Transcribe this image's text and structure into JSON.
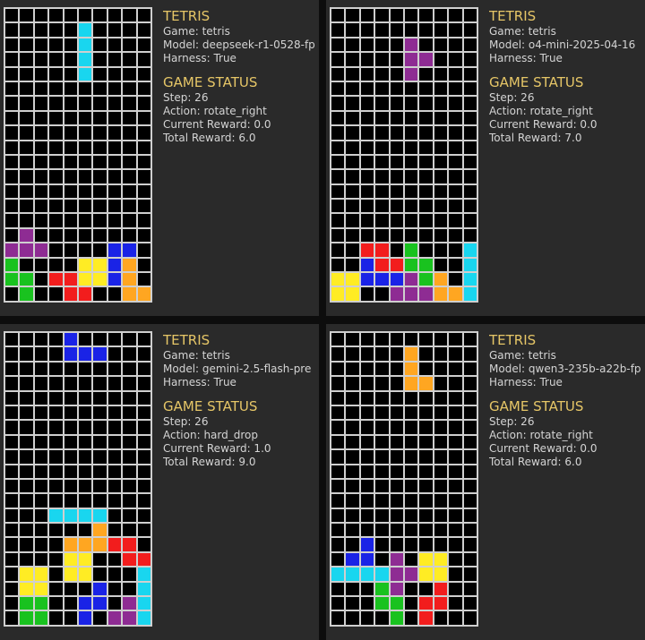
{
  "colors": {
    "cyan": "#19d6ef",
    "purple": "#8e2c93",
    "red": "#f21d1d",
    "green": "#19c21f",
    "yellow": "#ffec24",
    "blue": "#1a23e6",
    "orange": "#ffa621",
    "empty": "#000000"
  },
  "panels": [
    {
      "title": "TETRIS",
      "game_line": "Game: tetris",
      "model_line": "Model: deepseek-r1-0528-fp",
      "harness_line": "Harness: True",
      "status_title": "GAME STATUS",
      "step_line": "Step: 26",
      "action_line": "Action: rotate_right",
      "current_reward_line": "Current Reward: 0.0",
      "total_reward_line": "Total Reward: 6.0",
      "board": [
        "..........",
        ".....C....",
        ".....C....",
        ".....C....",
        ".....C....",
        "..........",
        "..........",
        "..........",
        "..........",
        "..........",
        "..........",
        "..........",
        "..........",
        "..........",
        "..........",
        ".P........",
        "PPP....BB.",
        "G....YYBO.",
        "GG.RRYYBO.",
        ".G..RR..OO"
      ]
    },
    {
      "title": "TETRIS",
      "game_line": "Game: tetris",
      "model_line": "Model: o4-mini-2025-04-16",
      "harness_line": "Harness: True",
      "status_title": "GAME STATUS",
      "step_line": "Step: 26",
      "action_line": "Action: rotate_right",
      "current_reward_line": "Current Reward: 0.0",
      "total_reward_line": "Total Reward: 7.0",
      "board": [
        "..........",
        "..........",
        ".....P....",
        ".....PP...",
        ".....P....",
        "..........",
        "..........",
        "..........",
        "..........",
        "..........",
        "..........",
        "..........",
        "..........",
        "..........",
        "..........",
        "..........",
        "..RR.G...C",
        "..BRRGG..C",
        "YYBBBPGO.C",
        "YY..PPPOOC"
      ]
    },
    {
      "title": "TETRIS",
      "game_line": "Game: tetris",
      "model_line": "Model: gemini-2.5-flash-pre",
      "harness_line": "Harness: True",
      "status_title": "GAME STATUS",
      "step_line": "Step: 26",
      "action_line": "Action: hard_drop",
      "current_reward_line": "Current Reward: 1.0",
      "total_reward_line": "Total Reward: 9.0",
      "board": [
        "....B.....",
        "....BBB...",
        "..........",
        "..........",
        "..........",
        "..........",
        "..........",
        "..........",
        "..........",
        "..........",
        "..........",
        "..........",
        "...CCCC...",
        "......O...",
        "....OOORR.",
        "....YY..RR",
        ".YY.YY...C",
        ".YY...B..C",
        ".GG..BB.PC",
        ".GG..B.PPC"
      ]
    },
    {
      "title": "TETRIS",
      "game_line": "Game: tetris",
      "model_line": "Model: qwen3-235b-a22b-fp",
      "harness_line": "Harness: True",
      "status_title": "GAME STATUS",
      "step_line": "Step: 26",
      "action_line": "Action: rotate_right",
      "current_reward_line": "Current Reward: 0.0",
      "total_reward_line": "Total Reward: 6.0",
      "board": [
        "..........",
        ".....O....",
        ".....O....",
        ".....OO...",
        "..........",
        "..........",
        "..........",
        "..........",
        "..........",
        "..........",
        "..........",
        "..........",
        "..........",
        "..........",
        "..B.......",
        ".BB.P.YY..",
        "CCCCPPYY..",
        "...GP..R..",
        "...GG.RR..",
        "....G.R..."
      ]
    }
  ]
}
